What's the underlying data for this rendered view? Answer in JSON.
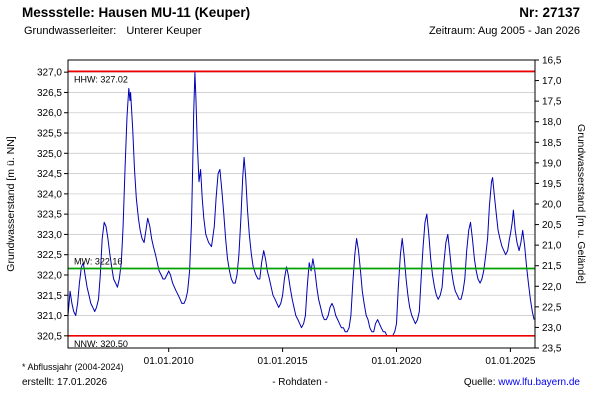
{
  "header": {
    "title": "Messstelle: Hausen MU-11 (Keuper)",
    "number": "Nr: 27137",
    "aquifer_label": "Grundwasserleiter:",
    "aquifer_value": "Unterer Keuper",
    "period": "Zeitraum: Aug 2005 - Jan 2026"
  },
  "footer": {
    "note": "* Abflussjahr (2004-2024)",
    "created": "erstellt: 17.01.2026",
    "datatype": "- Rohdaten -",
    "source_label": "Quelle:",
    "source_link": "www.lfu.bayern.de"
  },
  "colors": {
    "series": "#0000b4",
    "extreme_line": "#ee0000",
    "mean_line": "#00a000",
    "grid": "#cccccc",
    "link": "#0000ee"
  },
  "chart_data": {
    "type": "line",
    "title": "Messstelle: Hausen MU-11 (Keuper)",
    "ylabel_left": "Grundwasserstand [m ü. NN]",
    "ylabel_right": "Grundwasserstand [m u. Gelände]",
    "x_ticks": [
      "01.01.2010",
      "01.01.2015",
      "01.01.2020",
      "01.01.2025"
    ],
    "x_tick_years": [
      2010,
      2015,
      2020,
      2025
    ],
    "x_range": [
      2005.58,
      2026.08
    ],
    "ylim": [
      320.2,
      327.3
    ],
    "y_ticks_left": [
      "327,0",
      "326,5",
      "326,0",
      "325,5",
      "325,0",
      "324,5",
      "324,0",
      "323,5",
      "323,0",
      "322,5",
      "322,0",
      "321,5",
      "321,0",
      "320,5"
    ],
    "y_ticks_left_values": [
      327.0,
      326.5,
      326.0,
      325.5,
      325.0,
      324.5,
      324.0,
      323.5,
      323.0,
      322.5,
      322.0,
      321.5,
      321.0,
      320.5
    ],
    "y_ticks_right": [
      "16,5",
      "17,0",
      "17,5",
      "18,0",
      "18,5",
      "19,0",
      "19,5",
      "20,0",
      "20,5",
      "21,0",
      "21,5",
      "22,0",
      "22,5",
      "23,0",
      "23,5"
    ],
    "grid": true,
    "legend_position": "none",
    "reference_lines": [
      {
        "name": "HHW",
        "label": "HHW: 327.02",
        "value": 327.02,
        "color": "#ee0000",
        "label_below": true
      },
      {
        "name": "MW",
        "label": "MW: 322.16",
        "value": 322.16,
        "color": "#00a000",
        "label_below": false
      },
      {
        "name": "NNW",
        "label": "NNW: 320.50",
        "value": 320.5,
        "color": "#ee0000",
        "label_below": true
      }
    ],
    "series": [
      {
        "name": "Rohdaten",
        "color": "#0000b4",
        "points": [
          [
            2005.58,
            321.0
          ],
          [
            2005.67,
            321.6
          ],
          [
            2005.75,
            321.3
          ],
          [
            2005.83,
            321.1
          ],
          [
            2005.92,
            321.0
          ],
          [
            2006.0,
            321.3
          ],
          [
            2006.08,
            321.8
          ],
          [
            2006.17,
            322.2
          ],
          [
            2006.25,
            322.3
          ],
          [
            2006.33,
            322.0
          ],
          [
            2006.42,
            321.7
          ],
          [
            2006.5,
            321.5
          ],
          [
            2006.58,
            321.3
          ],
          [
            2006.67,
            321.2
          ],
          [
            2006.75,
            321.1
          ],
          [
            2006.83,
            321.2
          ],
          [
            2006.92,
            321.4
          ],
          [
            2007.0,
            322.0
          ],
          [
            2007.08,
            322.9
          ],
          [
            2007.17,
            323.3
          ],
          [
            2007.25,
            323.2
          ],
          [
            2007.33,
            322.9
          ],
          [
            2007.42,
            322.5
          ],
          [
            2007.5,
            322.2
          ],
          [
            2007.58,
            321.9
          ],
          [
            2007.67,
            321.8
          ],
          [
            2007.75,
            321.7
          ],
          [
            2007.83,
            321.9
          ],
          [
            2007.92,
            322.3
          ],
          [
            2008.0,
            323.2
          ],
          [
            2008.08,
            324.6
          ],
          [
            2008.17,
            325.9
          ],
          [
            2008.25,
            326.6
          ],
          [
            2008.3,
            326.3
          ],
          [
            2008.33,
            326.5
          ],
          [
            2008.42,
            325.6
          ],
          [
            2008.5,
            324.6
          ],
          [
            2008.58,
            323.9
          ],
          [
            2008.67,
            323.4
          ],
          [
            2008.75,
            323.1
          ],
          [
            2008.83,
            322.9
          ],
          [
            2008.92,
            322.8
          ],
          [
            2009.0,
            323.1
          ],
          [
            2009.08,
            323.4
          ],
          [
            2009.17,
            323.2
          ],
          [
            2009.25,
            322.9
          ],
          [
            2009.33,
            322.7
          ],
          [
            2009.42,
            322.5
          ],
          [
            2009.5,
            322.3
          ],
          [
            2009.58,
            322.1
          ],
          [
            2009.67,
            322.0
          ],
          [
            2009.75,
            321.9
          ],
          [
            2009.83,
            321.9
          ],
          [
            2009.92,
            322.0
          ],
          [
            2010.0,
            322.1
          ],
          [
            2010.08,
            322.0
          ],
          [
            2010.17,
            321.8
          ],
          [
            2010.25,
            321.7
          ],
          [
            2010.33,
            321.6
          ],
          [
            2010.42,
            321.5
          ],
          [
            2010.5,
            321.4
          ],
          [
            2010.58,
            321.3
          ],
          [
            2010.67,
            321.3
          ],
          [
            2010.75,
            321.4
          ],
          [
            2010.83,
            321.6
          ],
          [
            2010.92,
            322.1
          ],
          [
            2011.0,
            323.3
          ],
          [
            2011.06,
            324.8
          ],
          [
            2011.1,
            326.0
          ],
          [
            2011.15,
            327.0
          ],
          [
            2011.2,
            326.3
          ],
          [
            2011.25,
            325.3
          ],
          [
            2011.33,
            324.3
          ],
          [
            2011.4,
            324.6
          ],
          [
            2011.47,
            323.9
          ],
          [
            2011.54,
            323.4
          ],
          [
            2011.63,
            323.0
          ],
          [
            2011.75,
            322.8
          ],
          [
            2011.88,
            322.7
          ],
          [
            2012.0,
            323.2
          ],
          [
            2012.08,
            323.9
          ],
          [
            2012.17,
            324.5
          ],
          [
            2012.25,
            324.6
          ],
          [
            2012.33,
            324.1
          ],
          [
            2012.42,
            323.5
          ],
          [
            2012.5,
            322.9
          ],
          [
            2012.58,
            322.4
          ],
          [
            2012.67,
            322.1
          ],
          [
            2012.75,
            321.9
          ],
          [
            2012.83,
            321.8
          ],
          [
            2012.92,
            321.8
          ],
          [
            2013.0,
            322.0
          ],
          [
            2013.08,
            322.5
          ],
          [
            2013.17,
            323.4
          ],
          [
            2013.25,
            324.4
          ],
          [
            2013.31,
            324.9
          ],
          [
            2013.38,
            324.4
          ],
          [
            2013.46,
            323.6
          ],
          [
            2013.54,
            323.0
          ],
          [
            2013.63,
            322.5
          ],
          [
            2013.71,
            322.2
          ],
          [
            2013.83,
            322.0
          ],
          [
            2013.92,
            321.9
          ],
          [
            2014.0,
            321.9
          ],
          [
            2014.08,
            322.3
          ],
          [
            2014.17,
            322.6
          ],
          [
            2014.25,
            322.4
          ],
          [
            2014.33,
            322.1
          ],
          [
            2014.42,
            321.9
          ],
          [
            2014.5,
            321.7
          ],
          [
            2014.58,
            321.5
          ],
          [
            2014.67,
            321.4
          ],
          [
            2014.75,
            321.3
          ],
          [
            2014.83,
            321.2
          ],
          [
            2014.92,
            321.3
          ],
          [
            2015.0,
            321.5
          ],
          [
            2015.08,
            321.9
          ],
          [
            2015.17,
            322.2
          ],
          [
            2015.25,
            322.0
          ],
          [
            2015.33,
            321.7
          ],
          [
            2015.42,
            321.4
          ],
          [
            2015.5,
            321.2
          ],
          [
            2015.58,
            321.0
          ],
          [
            2015.67,
            320.9
          ],
          [
            2015.75,
            320.8
          ],
          [
            2015.83,
            320.7
          ],
          [
            2015.92,
            320.8
          ],
          [
            2016.0,
            321.0
          ],
          [
            2016.08,
            321.7
          ],
          [
            2016.17,
            322.3
          ],
          [
            2016.25,
            322.1
          ],
          [
            2016.33,
            322.4
          ],
          [
            2016.42,
            322.1
          ],
          [
            2016.5,
            321.7
          ],
          [
            2016.58,
            321.4
          ],
          [
            2016.67,
            321.2
          ],
          [
            2016.75,
            321.0
          ],
          [
            2016.83,
            320.9
          ],
          [
            2016.92,
            320.9
          ],
          [
            2017.0,
            321.0
          ],
          [
            2017.08,
            321.2
          ],
          [
            2017.17,
            321.3
          ],
          [
            2017.25,
            321.2
          ],
          [
            2017.33,
            321.0
          ],
          [
            2017.42,
            320.9
          ],
          [
            2017.5,
            320.8
          ],
          [
            2017.58,
            320.7
          ],
          [
            2017.67,
            320.7
          ],
          [
            2017.75,
            320.6
          ],
          [
            2017.83,
            320.6
          ],
          [
            2017.92,
            320.7
          ],
          [
            2018.0,
            321.0
          ],
          [
            2018.08,
            321.8
          ],
          [
            2018.17,
            322.5
          ],
          [
            2018.25,
            322.9
          ],
          [
            2018.33,
            322.6
          ],
          [
            2018.42,
            322.1
          ],
          [
            2018.5,
            321.6
          ],
          [
            2018.58,
            321.3
          ],
          [
            2018.67,
            321.0
          ],
          [
            2018.75,
            320.9
          ],
          [
            2018.83,
            320.7
          ],
          [
            2018.92,
            320.6
          ],
          [
            2019.0,
            320.6
          ],
          [
            2019.08,
            320.8
          ],
          [
            2019.17,
            320.9
          ],
          [
            2019.25,
            320.8
          ],
          [
            2019.33,
            320.7
          ],
          [
            2019.42,
            320.6
          ],
          [
            2019.5,
            320.6
          ],
          [
            2019.58,
            320.5
          ],
          [
            2019.67,
            320.5
          ],
          [
            2019.75,
            320.5
          ],
          [
            2019.83,
            320.5
          ],
          [
            2019.92,
            320.6
          ],
          [
            2020.0,
            320.8
          ],
          [
            2020.08,
            321.7
          ],
          [
            2020.17,
            322.5
          ],
          [
            2020.25,
            322.9
          ],
          [
            2020.33,
            322.5
          ],
          [
            2020.42,
            321.9
          ],
          [
            2020.5,
            321.5
          ],
          [
            2020.58,
            321.2
          ],
          [
            2020.67,
            321.0
          ],
          [
            2020.75,
            320.9
          ],
          [
            2020.83,
            320.8
          ],
          [
            2020.92,
            320.9
          ],
          [
            2021.0,
            321.1
          ],
          [
            2021.08,
            321.9
          ],
          [
            2021.17,
            322.7
          ],
          [
            2021.25,
            323.3
          ],
          [
            2021.33,
            323.5
          ],
          [
            2021.42,
            323.0
          ],
          [
            2021.5,
            322.4
          ],
          [
            2021.58,
            322.0
          ],
          [
            2021.67,
            321.7
          ],
          [
            2021.75,
            321.5
          ],
          [
            2021.83,
            321.4
          ],
          [
            2021.92,
            321.5
          ],
          [
            2022.0,
            321.7
          ],
          [
            2022.08,
            322.3
          ],
          [
            2022.17,
            322.8
          ],
          [
            2022.25,
            323.0
          ],
          [
            2022.33,
            322.6
          ],
          [
            2022.42,
            322.1
          ],
          [
            2022.5,
            321.8
          ],
          [
            2022.58,
            321.6
          ],
          [
            2022.67,
            321.5
          ],
          [
            2022.75,
            321.4
          ],
          [
            2022.83,
            321.4
          ],
          [
            2022.92,
            321.6
          ],
          [
            2023.0,
            321.9
          ],
          [
            2023.08,
            322.6
          ],
          [
            2023.17,
            323.1
          ],
          [
            2023.25,
            323.3
          ],
          [
            2023.33,
            322.9
          ],
          [
            2023.42,
            322.4
          ],
          [
            2023.5,
            322.1
          ],
          [
            2023.58,
            321.9
          ],
          [
            2023.67,
            321.8
          ],
          [
            2023.75,
            321.9
          ],
          [
            2023.83,
            322.1
          ],
          [
            2023.92,
            322.5
          ],
          [
            2024.0,
            322.9
          ],
          [
            2024.08,
            323.7
          ],
          [
            2024.17,
            324.3
          ],
          [
            2024.22,
            324.4
          ],
          [
            2024.29,
            324.0
          ],
          [
            2024.38,
            323.5
          ],
          [
            2024.46,
            323.1
          ],
          [
            2024.54,
            322.9
          ],
          [
            2024.63,
            322.7
          ],
          [
            2024.71,
            322.6
          ],
          [
            2024.79,
            322.5
          ],
          [
            2024.88,
            322.6
          ],
          [
            2024.96,
            322.9
          ],
          [
            2025.0,
            323.0
          ],
          [
            2025.08,
            323.3
          ],
          [
            2025.13,
            323.6
          ],
          [
            2025.21,
            323.1
          ],
          [
            2025.29,
            322.8
          ],
          [
            2025.38,
            322.6
          ],
          [
            2025.46,
            322.8
          ],
          [
            2025.54,
            323.1
          ],
          [
            2025.63,
            322.7
          ],
          [
            2025.71,
            322.2
          ],
          [
            2025.79,
            321.8
          ],
          [
            2025.88,
            321.4
          ],
          [
            2025.96,
            321.1
          ],
          [
            2026.04,
            320.9
          ]
        ]
      }
    ]
  }
}
